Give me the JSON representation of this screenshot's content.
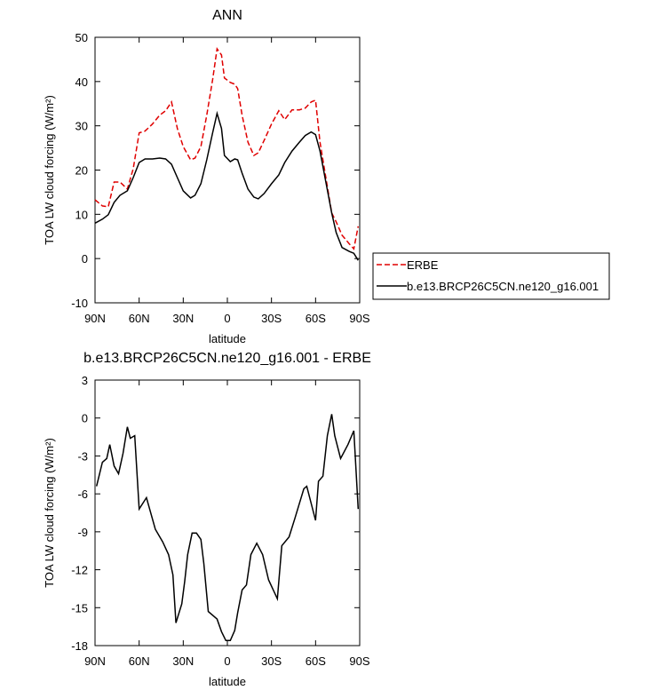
{
  "chart_data": [
    {
      "type": "line",
      "title": "ANN",
      "xlabel": "latitude",
      "ylabel": "TOA LW cloud forcing (W/m²)",
      "x": [
        90,
        85,
        81,
        77,
        73,
        68,
        64,
        60,
        56,
        51,
        46,
        42,
        38,
        34,
        30,
        25,
        22,
        18,
        14,
        10,
        7,
        4,
        2,
        -2,
        -5,
        -7,
        -10,
        -14,
        -18,
        -21,
        -25,
        -30,
        -35,
        -39,
        -44,
        -49,
        -53,
        -57,
        -60,
        -63,
        -67,
        -71,
        -74,
        -78,
        -83,
        -86,
        -89
      ],
      "series": [
        {
          "name": "ERBE",
          "color": "#e00000",
          "line_style": "dashed",
          "values": [
            13.3,
            11.9,
            11.7,
            17.3,
            17.3,
            15.7,
            20.3,
            28.4,
            28.8,
            30.4,
            32.4,
            33.4,
            35.4,
            29.4,
            25.3,
            22.3,
            22.7,
            25.3,
            32.4,
            40.4,
            47.4,
            46,
            40.8,
            39.8,
            39.4,
            38.4,
            32.4,
            26.3,
            23.3,
            23.9,
            26.7,
            30.4,
            33.4,
            31.4,
            33.6,
            33.6,
            34,
            35.4,
            35.8,
            26.3,
            18.3,
            10.3,
            8.3,
            5.3,
            3.3,
            2.2,
            7.3
          ]
        },
        {
          "name": "b.e13.BRCP26C5CN.ne120_g16.001",
          "color": "#000000",
          "line_style": "solid",
          "values": [
            8,
            8.9,
            9.9,
            12.7,
            14.3,
            15.3,
            18.3,
            21.7,
            22.5,
            22.5,
            22.7,
            22.5,
            21.3,
            18.3,
            15.3,
            13.7,
            14.3,
            16.9,
            22.3,
            28.4,
            32.8,
            29.4,
            23.3,
            21.9,
            22.5,
            22.3,
            19.3,
            15.7,
            13.9,
            13.5,
            14.7,
            16.9,
            18.9,
            21.7,
            24.3,
            26.3,
            27.8,
            28.6,
            28,
            24.3,
            17.3,
            10.3,
            5.9,
            2.5,
            1.6,
            1.2,
            -0.4
          ]
        }
      ],
      "xlim": [
        90,
        -90
      ],
      "xticks": [
        {
          "value": 90,
          "label": "90N"
        },
        {
          "value": 60,
          "label": "60N"
        },
        {
          "value": 30,
          "label": "30N"
        },
        0,
        {
          "value": -30,
          "label": "30S"
        },
        {
          "value": -60,
          "label": "60S"
        },
        {
          "value": -90,
          "label": "90S"
        }
      ],
      "ylim": [
        -10,
        50
      ],
      "yticks": [
        -10,
        0,
        10,
        20,
        30,
        40,
        50
      ],
      "legend": "right"
    },
    {
      "type": "line",
      "title": "b.e13.BRCP26C5CN.ne120_g16.001 - ERBE",
      "xlabel": "latitude",
      "ylabel": "TOA LW cloud forcing (W/m²)",
      "x": [
        89,
        85,
        82,
        80,
        77,
        74,
        71,
        68,
        66,
        63,
        60,
        55,
        49,
        44,
        40,
        37,
        35,
        31,
        29,
        27,
        24,
        21,
        18,
        16,
        13,
        7,
        4,
        1,
        -2,
        -5,
        -7,
        -10,
        -13,
        -16,
        -20,
        -24,
        -28,
        -34,
        -37,
        -42,
        -46,
        -52,
        -54,
        -60,
        -62,
        -65,
        -68,
        -71,
        -73,
        -77,
        -82,
        -86,
        -89
      ],
      "values": [
        -5.4,
        -3.5,
        -3.2,
        -2.1,
        -3.8,
        -4.4,
        -2.8,
        -0.7,
        -1.6,
        -1.4,
        -7.2,
        -6.3,
        -8.8,
        -9.8,
        -10.8,
        -12.4,
        -16.2,
        -14.7,
        -12.9,
        -10.8,
        -9.1,
        -9.1,
        -9.6,
        -11.5,
        -15.3,
        -15.9,
        -16.9,
        -17.6,
        -17.6,
        -16.8,
        -15.4,
        -13.6,
        -13.2,
        -10.8,
        -9.9,
        -10.8,
        -12.8,
        -14.3,
        -10.1,
        -9.4,
        -7.9,
        -5.6,
        -5.4,
        -8.1,
        -5,
        -4.6,
        -1.4,
        0.3,
        -1.4,
        -3.2,
        -2.1,
        -1,
        -7.2
      ],
      "color": "#000000",
      "xlim": [
        90,
        -90
      ],
      "xticks": [
        {
          "value": 90,
          "label": "90N"
        },
        {
          "value": 60,
          "label": "60N"
        },
        {
          "value": 30,
          "label": "30N"
        },
        0,
        {
          "value": -30,
          "label": "30S"
        },
        {
          "value": -60,
          "label": "60S"
        },
        {
          "value": -90,
          "label": "90S"
        }
      ],
      "ylim": [
        -18,
        3
      ],
      "yticks": [
        -18,
        -15,
        -12,
        -9,
        -6,
        -3,
        0,
        3
      ]
    }
  ]
}
